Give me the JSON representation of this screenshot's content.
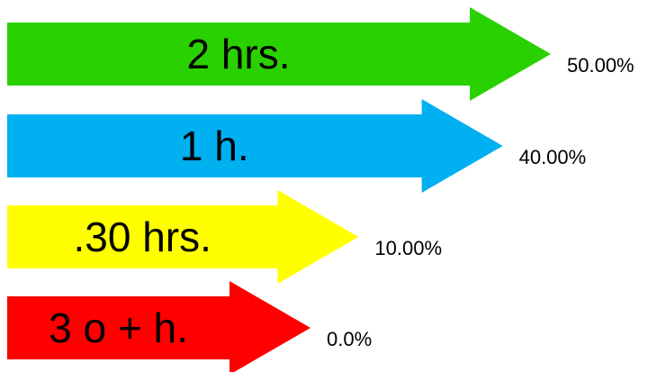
{
  "chart_data": {
    "type": "bar",
    "orientation": "horizontal",
    "categories": [
      "2 hrs.",
      "1 h.",
      ".30 hrs.",
      "3 o + h."
    ],
    "values": [
      50.0,
      40.0,
      10.0,
      0.0
    ],
    "value_labels": [
      "50.00%",
      "40.00%",
      "10.00%",
      "0.0%"
    ],
    "colors": [
      "#2ad100",
      "#00b0f0",
      "#ffff00",
      "#ff0000"
    ],
    "title": "",
    "xlabel": "",
    "ylabel": ""
  }
}
